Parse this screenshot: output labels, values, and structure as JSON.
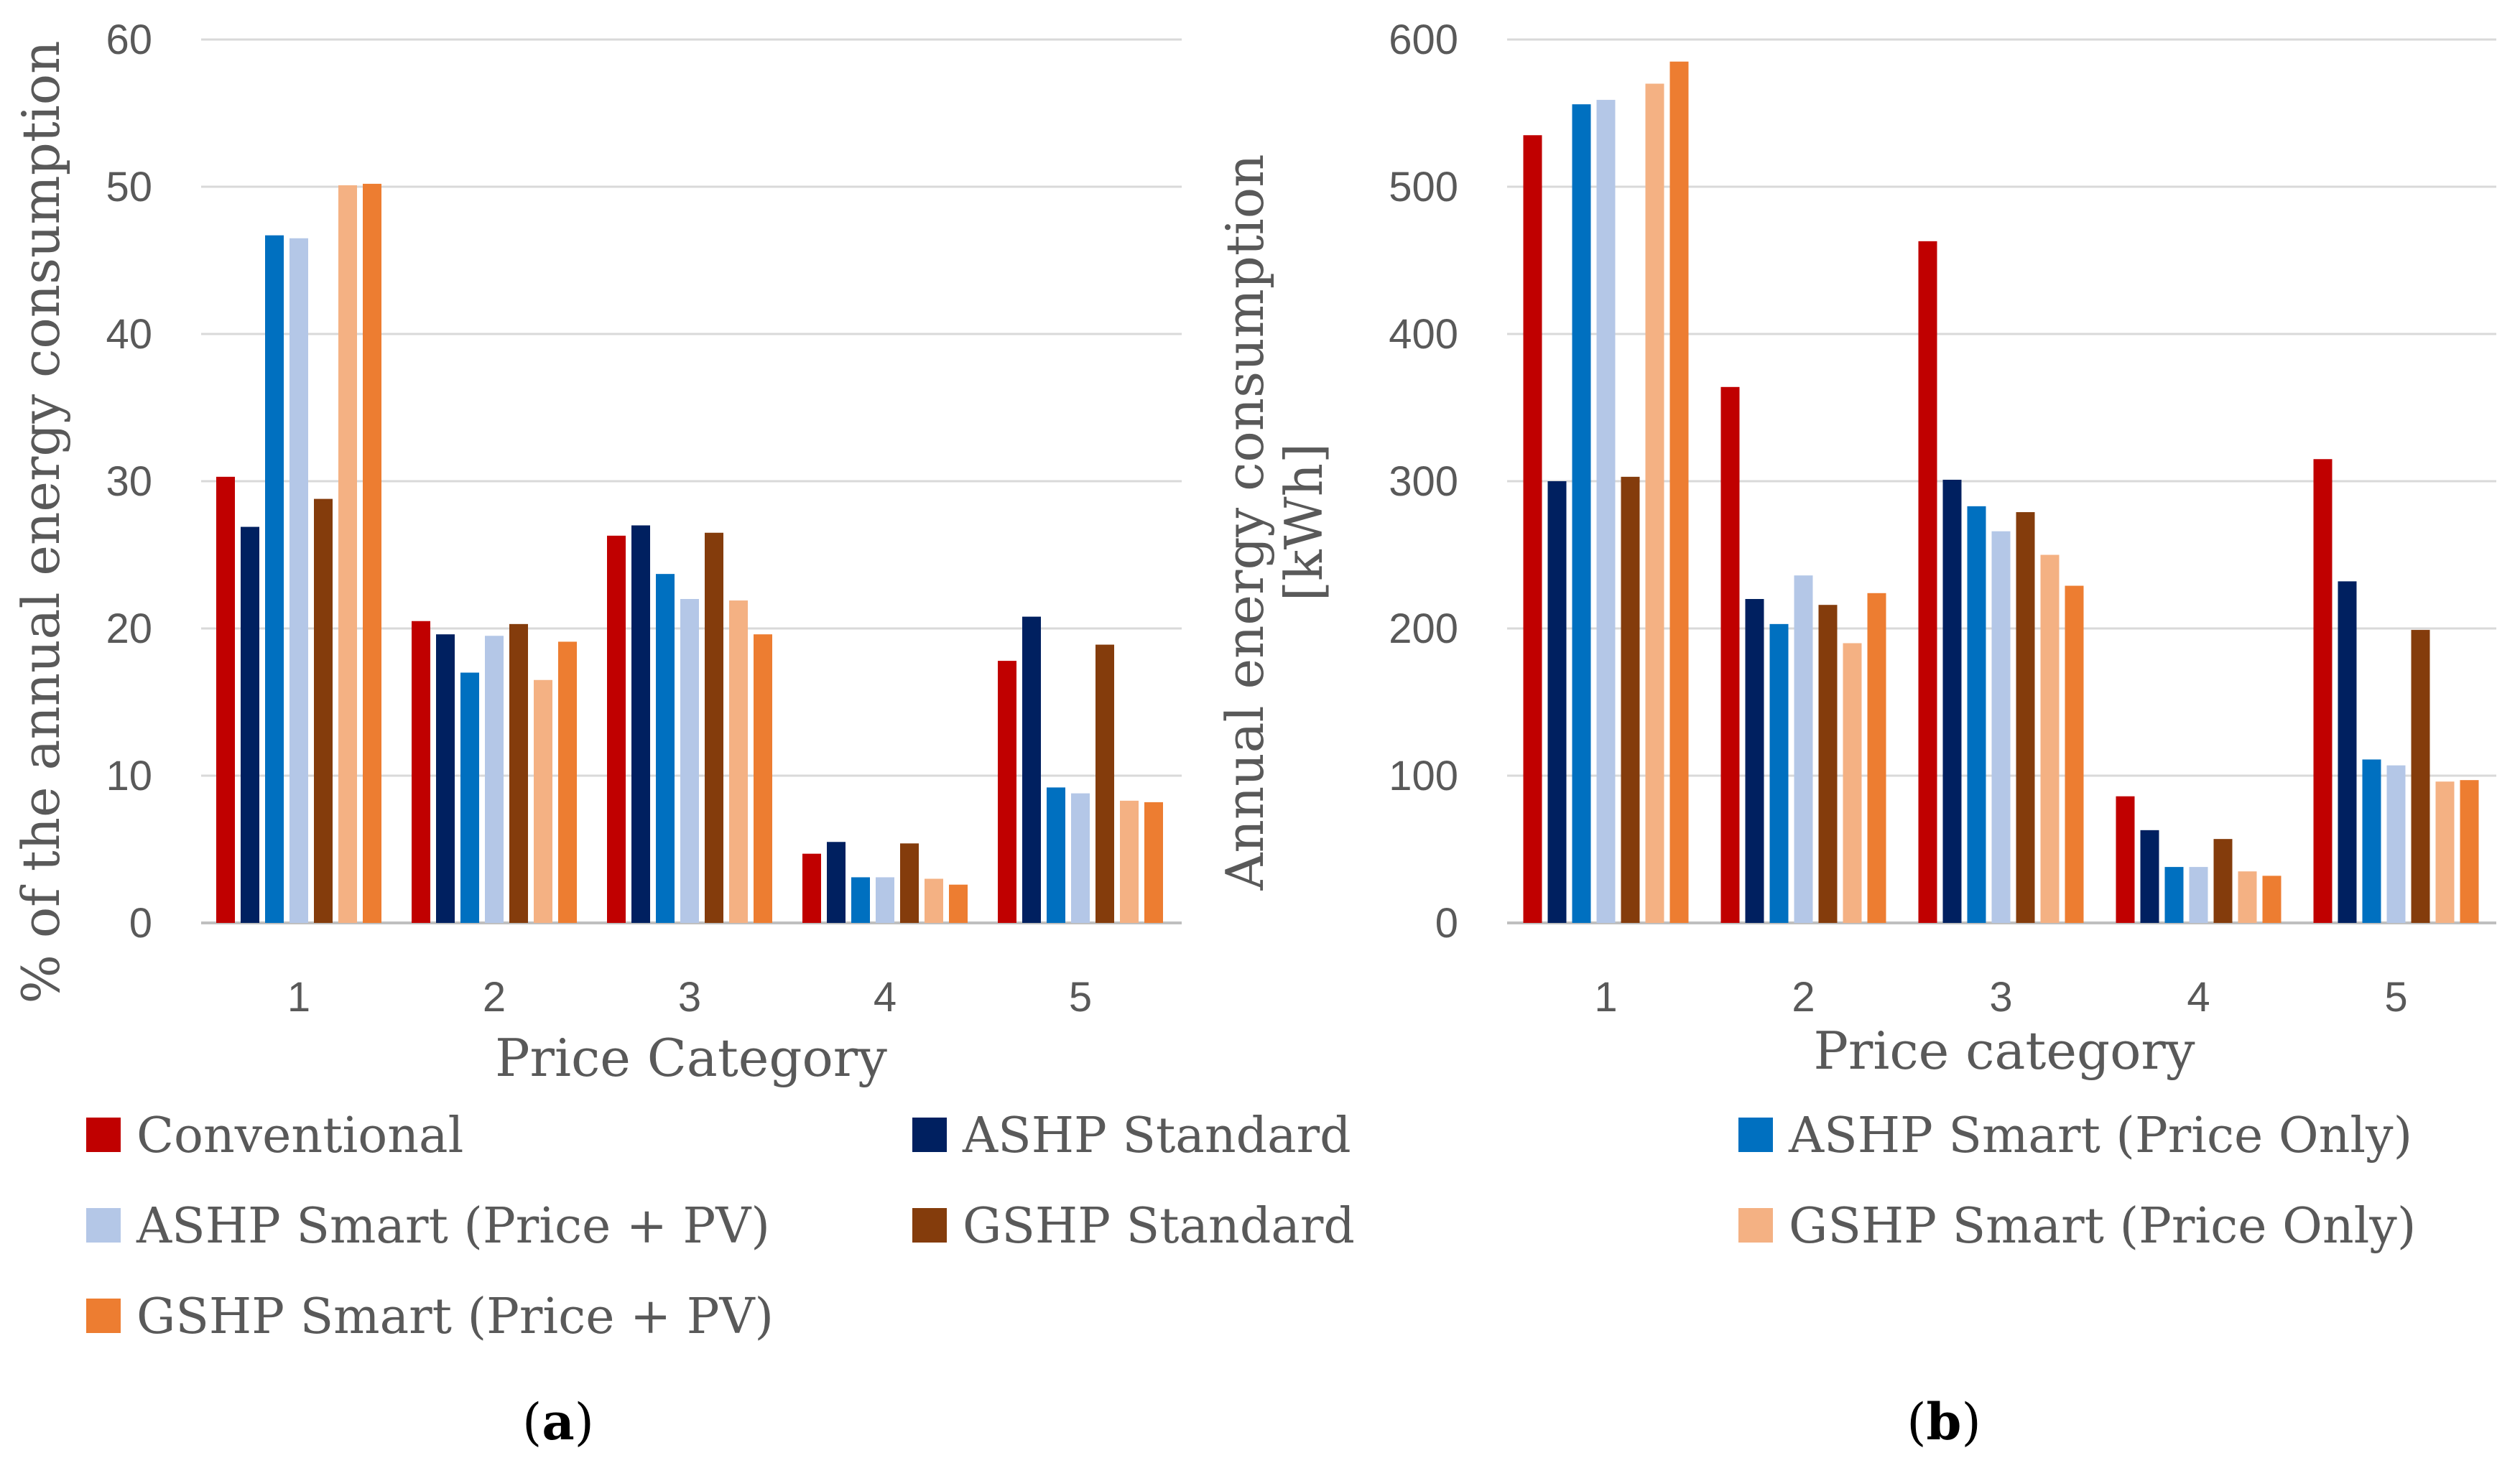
{
  "colors": {
    "Conventional": "#C00000",
    "ASHP Standard": "#002060",
    "ASHP Smart (Price Only)": "#0070C0",
    "ASHP Smart (Price + PV)": "#B4C7E7",
    "GSHP Standard": "#843C0C",
    "GSHP Smart (Price Only)": "#F4B183",
    "GSHP Smart (Price + PV)": "#ED7D31"
  },
  "legend": [
    "Conventional",
    "ASHP Standard",
    "ASHP Smart (Price Only)",
    "ASHP Smart (Price + PV)",
    "GSHP Standard",
    "GSHP Smart (Price Only)",
    "GSHP Smart (Price + PV)"
  ],
  "captions": {
    "a": {
      "open": "(",
      "letter": "a",
      "close": ")"
    },
    "b": {
      "open": "(",
      "letter": "b",
      "close": ")"
    }
  },
  "chart_data": [
    {
      "id": "a",
      "type": "bar",
      "title": "",
      "xlabel": "Price Category",
      "ylabel": "% of the annual energy consumption",
      "ylim": [
        0,
        60
      ],
      "yticks": [
        "0",
        "10",
        "20",
        "30",
        "40",
        "50",
        "60"
      ],
      "grid": true,
      "categories": [
        "1",
        "2",
        "3",
        "4",
        "5"
      ],
      "series": [
        {
          "name": "Conventional",
          "values": [
            30.3,
            20.5,
            26.3,
            4.7,
            17.8
          ]
        },
        {
          "name": "ASHP Standard",
          "values": [
            26.9,
            19.6,
            27.0,
            5.5,
            20.8
          ]
        },
        {
          "name": "ASHP Smart (Price Only)",
          "values": [
            46.7,
            17.0,
            23.7,
            3.1,
            9.2
          ]
        },
        {
          "name": "ASHP Smart (Price + PV)",
          "values": [
            46.5,
            19.5,
            22.0,
            3.1,
            8.8
          ]
        },
        {
          "name": "GSHP Standard",
          "values": [
            28.8,
            20.3,
            26.5,
            5.4,
            18.9
          ]
        },
        {
          "name": "GSHP Smart (Price Only)",
          "values": [
            50.1,
            16.5,
            21.9,
            3.0,
            8.3
          ]
        },
        {
          "name": "GSHP Smart (Price + PV)",
          "values": [
            50.2,
            19.1,
            19.6,
            2.6,
            8.2
          ]
        }
      ]
    },
    {
      "id": "b",
      "type": "bar",
      "title": "",
      "xlabel": "Price category",
      "ylabel": "Annual energy consumption [kWh]",
      "ylabel_lines": [
        "Annual energy consumption",
        "[kWh]"
      ],
      "ylim": [
        0,
        600
      ],
      "yticks": [
        "0",
        "100",
        "200",
        "300",
        "400",
        "500",
        "600"
      ],
      "grid": true,
      "categories": [
        "1",
        "2",
        "3",
        "4",
        "5"
      ],
      "series": [
        {
          "name": "Conventional",
          "values": [
            535,
            364,
            463,
            86,
            315
          ]
        },
        {
          "name": "ASHP Standard",
          "values": [
            300,
            220,
            301,
            63,
            232
          ]
        },
        {
          "name": "ASHP Smart (Price Only)",
          "values": [
            556,
            203,
            283,
            38,
            111
          ]
        },
        {
          "name": "ASHP Smart (Price + PV)",
          "values": [
            559,
            236,
            266,
            38,
            107
          ]
        },
        {
          "name": "GSHP Standard",
          "values": [
            303,
            216,
            279,
            57,
            199
          ]
        },
        {
          "name": "GSHP Smart (Price Only)",
          "values": [
            570,
            190,
            250,
            35,
            96
          ]
        },
        {
          "name": "GSHP Smart (Price + PV)",
          "values": [
            585,
            224,
            229,
            32,
            97
          ]
        }
      ]
    }
  ]
}
